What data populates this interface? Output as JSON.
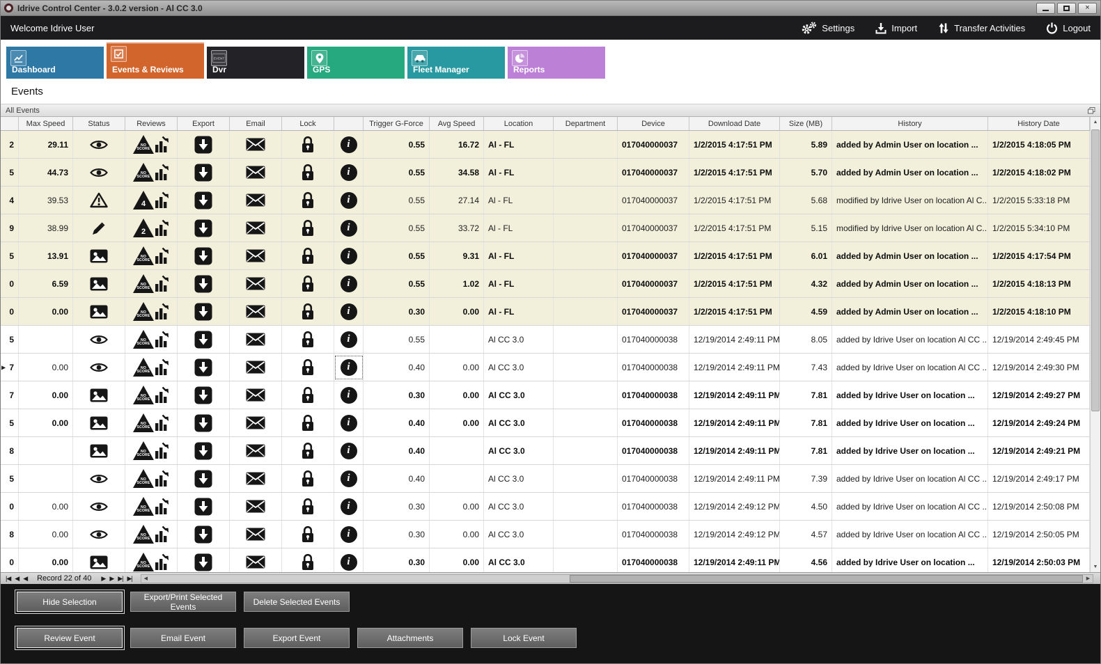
{
  "window": {
    "title": "Idrive Control Center - 3.0.2 version - Al CC 3.0",
    "close_glyph": "×"
  },
  "header": {
    "welcome": "Welcome Idrive User",
    "actions": [
      {
        "id": "settings",
        "label": "Settings"
      },
      {
        "id": "import",
        "label": "Import"
      },
      {
        "id": "transfer",
        "label": "Transfer Activities"
      },
      {
        "id": "logout",
        "label": "Logout"
      }
    ]
  },
  "tabs": [
    {
      "id": "dashboard",
      "label": "Dashboard",
      "color": "#2e78a6",
      "selected": false
    },
    {
      "id": "events",
      "label": "Events & Reviews",
      "color": "#d2652c",
      "selected": true
    },
    {
      "id": "dvr",
      "label": "Dvr",
      "color": "#232327",
      "selected": false
    },
    {
      "id": "gps",
      "label": "GPS",
      "color": "#26a97e",
      "selected": false
    },
    {
      "id": "fleet",
      "label": "Fleet Manager",
      "color": "#2899a0",
      "selected": false
    },
    {
      "id": "reports",
      "label": "Reports",
      "color": "#bc81d6",
      "selected": false
    }
  ],
  "page": {
    "title": "Events",
    "panel_title": "All Events"
  },
  "table": {
    "columns": [
      {
        "key": "id",
        "label": ""
      },
      {
        "key": "max_speed",
        "label": "Max Speed"
      },
      {
        "key": "status",
        "label": "Status"
      },
      {
        "key": "reviews",
        "label": "Reviews"
      },
      {
        "key": "export",
        "label": "Export"
      },
      {
        "key": "email",
        "label": "Email"
      },
      {
        "key": "lock",
        "label": "Lock"
      },
      {
        "key": "info",
        "label": ""
      },
      {
        "key": "trigger_g_force",
        "label": "Trigger G-Force"
      },
      {
        "key": "avg_speed",
        "label": "Avg Speed"
      },
      {
        "key": "location",
        "label": "Location"
      },
      {
        "key": "department",
        "label": "Department"
      },
      {
        "key": "device",
        "label": "Device"
      },
      {
        "key": "download_date",
        "label": "Download Date"
      },
      {
        "key": "size_mb",
        "label": "Size (MB)"
      },
      {
        "key": "history",
        "label": "History"
      },
      {
        "key": "history_date",
        "label": "History Date"
      }
    ],
    "rows": [
      {
        "id": "2",
        "max_speed": "29.11",
        "status": "eye",
        "review": "NO SCORE",
        "trigger": "0.55",
        "avg_speed": "16.72",
        "location": "Al - FL",
        "department": "",
        "device": "017040000037",
        "download_date": "1/2/2015 4:17:51 PM",
        "size": "5.89",
        "history": "added by Admin User on location ...",
        "history_date": "1/2/2015 4:18:05 PM",
        "bold": true,
        "shaded": true,
        "marker": false,
        "info_selected": false
      },
      {
        "id": "5",
        "max_speed": "44.73",
        "status": "eye",
        "review": "NO SCORE",
        "trigger": "0.55",
        "avg_speed": "34.58",
        "location": "Al - FL",
        "department": "",
        "device": "017040000037",
        "download_date": "1/2/2015 4:17:51 PM",
        "size": "5.70",
        "history": "added by Admin User on location ...",
        "history_date": "1/2/2015 4:18:02 PM",
        "bold": true,
        "shaded": true,
        "marker": false,
        "info_selected": false
      },
      {
        "id": "4",
        "max_speed": "39.53",
        "status": "warning",
        "review": "4",
        "trigger": "0.55",
        "avg_speed": "27.14",
        "location": "Al - FL",
        "department": "",
        "device": "017040000037",
        "download_date": "1/2/2015 4:17:51 PM",
        "size": "5.68",
        "history": "modified by Idrive User on location Al C...",
        "history_date": "1/2/2015 5:33:18 PM",
        "bold": false,
        "shaded": true,
        "marker": false,
        "info_selected": false
      },
      {
        "id": "9",
        "max_speed": "38.99",
        "status": "pencil",
        "review": "2",
        "trigger": "0.55",
        "avg_speed": "33.72",
        "location": "Al - FL",
        "department": "",
        "device": "017040000037",
        "download_date": "1/2/2015 4:17:51 PM",
        "size": "5.15",
        "history": "modified by Idrive User on location Al C...",
        "history_date": "1/2/2015 5:34:10 PM",
        "bold": false,
        "shaded": true,
        "marker": false,
        "info_selected": false
      },
      {
        "id": "5",
        "max_speed": "13.91",
        "status": "picture",
        "review": "NO SCORE",
        "trigger": "0.55",
        "avg_speed": "9.31",
        "location": "Al - FL",
        "department": "",
        "device": "017040000037",
        "download_date": "1/2/2015 4:17:51 PM",
        "size": "6.01",
        "history": "added by Admin User on location ...",
        "history_date": "1/2/2015 4:17:54 PM",
        "bold": true,
        "shaded": true,
        "marker": false,
        "info_selected": false
      },
      {
        "id": "0",
        "max_speed": "6.59",
        "status": "picture",
        "review": "NO SCORE",
        "trigger": "0.55",
        "avg_speed": "1.02",
        "location": "Al - FL",
        "department": "",
        "device": "017040000037",
        "download_date": "1/2/2015 4:17:51 PM",
        "size": "4.32",
        "history": "added by Admin User on location ...",
        "history_date": "1/2/2015 4:18:13 PM",
        "bold": true,
        "shaded": true,
        "marker": false,
        "info_selected": false
      },
      {
        "id": "0",
        "max_speed": "0.00",
        "status": "picture",
        "review": "NO SCORE",
        "trigger": "0.30",
        "avg_speed": "0.00",
        "location": "Al - FL",
        "department": "",
        "device": "017040000037",
        "download_date": "1/2/2015 4:17:51 PM",
        "size": "4.59",
        "history": "added by Admin User on location ...",
        "history_date": "1/2/2015 4:18:10 PM",
        "bold": true,
        "shaded": true,
        "marker": false,
        "info_selected": false
      },
      {
        "id": "5",
        "max_speed": "",
        "status": "eye",
        "review": "NO SCORE",
        "trigger": "0.55",
        "avg_speed": "",
        "location": "Al CC 3.0",
        "department": "",
        "device": "017040000038",
        "download_date": "12/19/2014 2:49:11 PM",
        "size": "8.05",
        "history": "added by Idrive User on location Al CC ...",
        "history_date": "12/19/2014 2:49:45 PM",
        "bold": false,
        "shaded": false,
        "marker": false,
        "info_selected": false
      },
      {
        "id": "7",
        "max_speed": "0.00",
        "status": "eye",
        "review": "NO SCORE",
        "trigger": "0.40",
        "avg_speed": "0.00",
        "location": "Al CC 3.0",
        "department": "",
        "device": "017040000038",
        "download_date": "12/19/2014 2:49:11 PM",
        "size": "7.43",
        "history": "added by Idrive User on location Al CC ...",
        "history_date": "12/19/2014 2:49:30 PM",
        "bold": false,
        "shaded": false,
        "marker": true,
        "info_selected": true
      },
      {
        "id": "7",
        "max_speed": "0.00",
        "status": "picture",
        "review": "NO SCORE",
        "trigger": "0.30",
        "avg_speed": "0.00",
        "location": "Al CC 3.0",
        "department": "",
        "device": "017040000038",
        "download_date": "12/19/2014 2:49:11 PM",
        "size": "7.81",
        "history": "added by Idrive User on location ...",
        "history_date": "12/19/2014 2:49:27 PM",
        "bold": true,
        "shaded": false,
        "marker": false,
        "info_selected": false
      },
      {
        "id": "5",
        "max_speed": "0.00",
        "status": "picture",
        "review": "NO SCORE",
        "trigger": "0.40",
        "avg_speed": "0.00",
        "location": "Al CC 3.0",
        "department": "",
        "device": "017040000038",
        "download_date": "12/19/2014 2:49:11 PM",
        "size": "7.81",
        "history": "added by Idrive User on location ...",
        "history_date": "12/19/2014 2:49:24 PM",
        "bold": true,
        "shaded": false,
        "marker": false,
        "info_selected": false
      },
      {
        "id": "8",
        "max_speed": "",
        "status": "picture",
        "review": "NO SCORE",
        "trigger": "0.40",
        "avg_speed": "",
        "location": "Al CC 3.0",
        "department": "",
        "device": "017040000038",
        "download_date": "12/19/2014 2:49:11 PM",
        "size": "7.81",
        "history": "added by Idrive User on location ...",
        "history_date": "12/19/2014 2:49:21 PM",
        "bold": true,
        "shaded": false,
        "marker": false,
        "info_selected": false
      },
      {
        "id": "5",
        "max_speed": "",
        "status": "eye",
        "review": "NO SCORE",
        "trigger": "0.40",
        "avg_speed": "",
        "location": "Al CC 3.0",
        "department": "",
        "device": "017040000038",
        "download_date": "12/19/2014 2:49:11 PM",
        "size": "7.39",
        "history": "added by Idrive User on location Al CC ...",
        "history_date": "12/19/2014 2:49:17 PM",
        "bold": false,
        "shaded": false,
        "marker": false,
        "info_selected": false
      },
      {
        "id": "0",
        "max_speed": "0.00",
        "status": "eye",
        "review": "NO SCORE",
        "trigger": "0.30",
        "avg_speed": "0.00",
        "location": "Al CC 3.0",
        "department": "",
        "device": "017040000038",
        "download_date": "12/19/2014 2:49:12 PM",
        "size": "4.50",
        "history": "added by Idrive User on location Al CC ...",
        "history_date": "12/19/2014 2:50:08 PM",
        "bold": false,
        "shaded": false,
        "marker": false,
        "info_selected": false
      },
      {
        "id": "8",
        "max_speed": "0.00",
        "status": "eye",
        "review": "NO SCORE",
        "trigger": "0.30",
        "avg_speed": "0.00",
        "location": "Al CC 3.0",
        "department": "",
        "device": "017040000038",
        "download_date": "12/19/2014 2:49:12 PM",
        "size": "4.57",
        "history": "added by Idrive User on location Al CC ...",
        "history_date": "12/19/2014 2:50:05 PM",
        "bold": false,
        "shaded": false,
        "marker": false,
        "info_selected": false
      },
      {
        "id": "0",
        "max_speed": "0.00",
        "status": "picture",
        "review": "NO SCORE",
        "trigger": "0.30",
        "avg_speed": "0.00",
        "location": "Al CC 3.0",
        "department": "",
        "device": "017040000038",
        "download_date": "12/19/2014 2:49:11 PM",
        "size": "4.56",
        "history": "added by Idrive User on location ...",
        "history_date": "12/19/2014 2:50:03 PM",
        "bold": true,
        "shaded": false,
        "marker": false,
        "info_selected": false
      }
    ]
  },
  "record_bar": {
    "label": "Record 22 of 40",
    "nav_left": [
      {
        "glyph": "|◀",
        "name": "first-record-button"
      },
      {
        "glyph": "◀",
        "name": "prev-page-button"
      },
      {
        "glyph": "◀",
        "name": "prev-record-button"
      }
    ],
    "nav_right": [
      {
        "glyph": "▶",
        "name": "next-record-button"
      },
      {
        "glyph": "▶",
        "name": "next-page-button"
      },
      {
        "glyph": "▶|",
        "name": "last-record-button"
      },
      {
        "glyph": "▶|",
        "name": "new-record-button"
      }
    ]
  },
  "action_bars": {
    "top": [
      "Hide Selection",
      "Export/Print Selected Events",
      "Delete Selected  Events"
    ],
    "bottom": [
      "Review Event",
      "Email Event",
      "Export Event",
      "Attachments",
      "Lock Event"
    ]
  }
}
